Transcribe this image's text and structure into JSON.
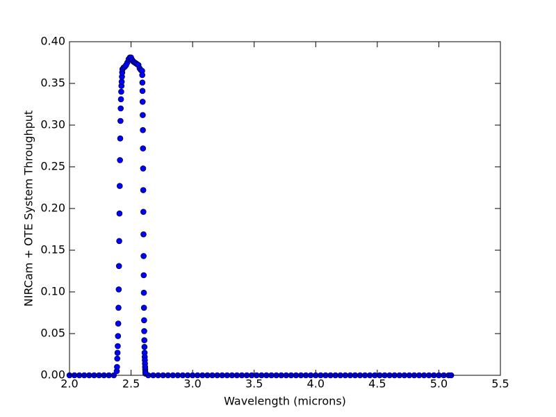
{
  "chart_data": {
    "type": "scatter",
    "xlabel": "Wavelength (microns)",
    "ylabel": "NIRCam + OTE System Throughput",
    "xlim": [
      2.0,
      5.5
    ],
    "ylim": [
      0.0,
      0.4
    ],
    "xticks": [
      {
        "value": 2.0,
        "label": "2.0"
      },
      2.5,
      {
        "value": 3.0,
        "label": "3.0"
      },
      3.5,
      {
        "value": 4.0,
        "label": "4.0"
      },
      4.5,
      {
        "value": 5.0,
        "label": "5.0"
      },
      5.5
    ],
    "yticks": [
      {
        "value": 0.0,
        "label": "0.00"
      },
      0.05,
      {
        "value": 0.1,
        "label": "0.10"
      },
      0.15,
      {
        "value": 0.2,
        "label": "0.20"
      },
      0.25,
      {
        "value": 0.3,
        "label": "0.30"
      },
      0.35,
      {
        "value": 0.4,
        "label": "0.40"
      }
    ],
    "series": [
      {
        "color": "#0000ff",
        "x": [
          2.0,
          2.04,
          2.08,
          2.12,
          2.16,
          2.2,
          2.24,
          2.28,
          2.32,
          2.36,
          2.384,
          2.386,
          2.388,
          2.39,
          2.392,
          2.394,
          2.396,
          2.398,
          2.4,
          2.402,
          2.404,
          2.406,
          2.408,
          2.41,
          2.412,
          2.414,
          2.416,
          2.418,
          2.42,
          2.422,
          2.424,
          2.426,
          2.428,
          2.43,
          2.44,
          2.45,
          2.46,
          2.47,
          2.48,
          2.49,
          2.5,
          2.51,
          2.52,
          2.53,
          2.54,
          2.55,
          2.56,
          2.57,
          2.58,
          2.59,
          2.591,
          2.592,
          2.593,
          2.594,
          2.595,
          2.596,
          2.597,
          2.598,
          2.599,
          2.6,
          2.601,
          2.602,
          2.603,
          2.604,
          2.605,
          2.606,
          2.607,
          2.608,
          2.609,
          2.61,
          2.611,
          2.612,
          2.613,
          2.614,
          2.615,
          2.616,
          2.617,
          2.64,
          2.68,
          2.72,
          2.76,
          2.8,
          2.84,
          2.88,
          2.92,
          2.96,
          3.0,
          3.04,
          3.08,
          3.12,
          3.16,
          3.2,
          3.24,
          3.28,
          3.32,
          3.36,
          3.4,
          3.44,
          3.48,
          3.52,
          3.56,
          3.6,
          3.64,
          3.68,
          3.72,
          3.76,
          3.8,
          3.84,
          3.88,
          3.92,
          3.96,
          4.0,
          4.04,
          4.08,
          4.12,
          4.16,
          4.2,
          4.24,
          4.28,
          4.32,
          4.36,
          4.4,
          4.44,
          4.48,
          4.52,
          4.56,
          4.6,
          4.64,
          4.68,
          4.72,
          4.76,
          4.8,
          4.84,
          4.88,
          4.92,
          4.96,
          5.0,
          5.04,
          5.08,
          5.1
        ],
        "values": [
          0,
          0,
          0,
          0,
          0,
          0,
          0,
          0,
          0,
          0,
          0.005,
          0.01,
          0.02,
          0.027,
          0.035,
          0.047,
          0.062,
          0.081,
          0.103,
          0.131,
          0.161,
          0.194,
          0.227,
          0.258,
          0.284,
          0.305,
          0.32,
          0.331,
          0.34,
          0.347,
          0.352,
          0.358,
          0.363,
          0.367,
          0.369,
          0.37,
          0.372,
          0.375,
          0.379,
          0.381,
          0.381,
          0.378,
          0.376,
          0.375,
          0.374,
          0.373,
          0.372,
          0.368,
          0.366,
          0.365,
          0.36,
          0.351,
          0.341,
          0.328,
          0.312,
          0.294,
          0.272,
          0.248,
          0.222,
          0.196,
          0.169,
          0.143,
          0.12,
          0.099,
          0.081,
          0.066,
          0.053,
          0.042,
          0.034,
          0.027,
          0.022,
          0.018,
          0.014,
          0.01,
          0.007,
          0.004,
          0.002,
          0,
          0,
          0,
          0,
          0,
          0,
          0,
          0,
          0,
          0,
          0,
          0,
          0,
          0,
          0,
          0,
          0,
          0,
          0,
          0,
          0,
          0,
          0,
          0,
          0,
          0,
          0,
          0,
          0,
          0,
          0,
          0,
          0,
          0,
          0,
          0,
          0,
          0,
          0,
          0,
          0,
          0,
          0,
          0,
          0,
          0,
          0,
          0,
          0,
          0,
          0,
          0,
          0,
          0,
          0,
          0,
          0,
          0,
          0,
          0,
          0,
          0,
          0
        ]
      }
    ]
  }
}
